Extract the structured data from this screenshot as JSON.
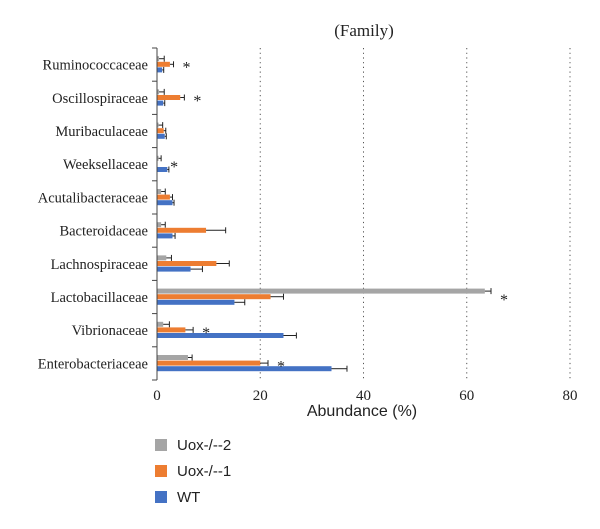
{
  "chart_data": {
    "type": "bar",
    "orientation": "horizontal",
    "title": "(Family)",
    "xlabel": "Abundance (%)",
    "ylabel": "",
    "xlim": [
      0,
      80
    ],
    "xticks": [
      "0",
      "20",
      "40",
      "60",
      "80"
    ],
    "grid": "vertical dotted",
    "legend_position": "bottom-left",
    "categories": [
      "Ruminococcaceae",
      "Oscillospiraceae",
      "Muribaculaceae",
      "Weeksellaceae",
      "Acutalibacteraceae",
      "Bacteroidaceae",
      "Lachnospiraceae",
      "Lactobacillaceae",
      "Vibrionaceae",
      "Enterobacteriaceae"
    ],
    "series": [
      {
        "name": "Uox-/--2",
        "color": "#a5a5a5",
        "values": [
          0.4,
          0.4,
          0.3,
          0.3,
          0.8,
          0.8,
          1.8,
          63.5,
          1.2,
          6.0
        ],
        "errors": [
          1.0,
          1.0,
          0.8,
          0.5,
          0.8,
          0.8,
          1.0,
          1.2,
          1.2,
          0.8
        ]
      },
      {
        "name": "Uox-/--1",
        "color": "#ed7d31",
        "values": [
          2.5,
          4.5,
          1.3,
          0.0,
          2.5,
          9.5,
          11.5,
          22.0,
          5.5,
          20.0
        ],
        "errors": [
          0.7,
          0.8,
          0.4,
          0.0,
          0.5,
          3.8,
          2.5,
          2.5,
          1.5,
          1.5
        ]
      },
      {
        "name": "WT",
        "color": "#4472c4",
        "values": [
          1.0,
          1.2,
          1.5,
          2.0,
          3.0,
          3.0,
          6.5,
          15.0,
          24.5,
          33.8
        ],
        "errors": [
          0.3,
          0.3,
          0.3,
          0.3,
          0.3,
          0.5,
          2.3,
          2.0,
          2.5,
          3.0
        ]
      }
    ],
    "annotations": [
      {
        "category": "Ruminococcaceae",
        "text": "*"
      },
      {
        "category": "Oscillospiraceae",
        "text": "*"
      },
      {
        "category": "Weeksellaceae",
        "text": "*"
      },
      {
        "category": "Lactobacillaceae",
        "text": "*"
      },
      {
        "category": "Vibrionaceae",
        "text": "*"
      },
      {
        "category": "Enterobacteriaceae",
        "text": "*"
      }
    ]
  },
  "legend": [
    {
      "label": "Uox-/--2",
      "color": "#a5a5a5"
    },
    {
      "label": "Uox-/--1",
      "color": "#ed7d31"
    },
    {
      "label": "WT",
      "color": "#4472c4"
    }
  ]
}
